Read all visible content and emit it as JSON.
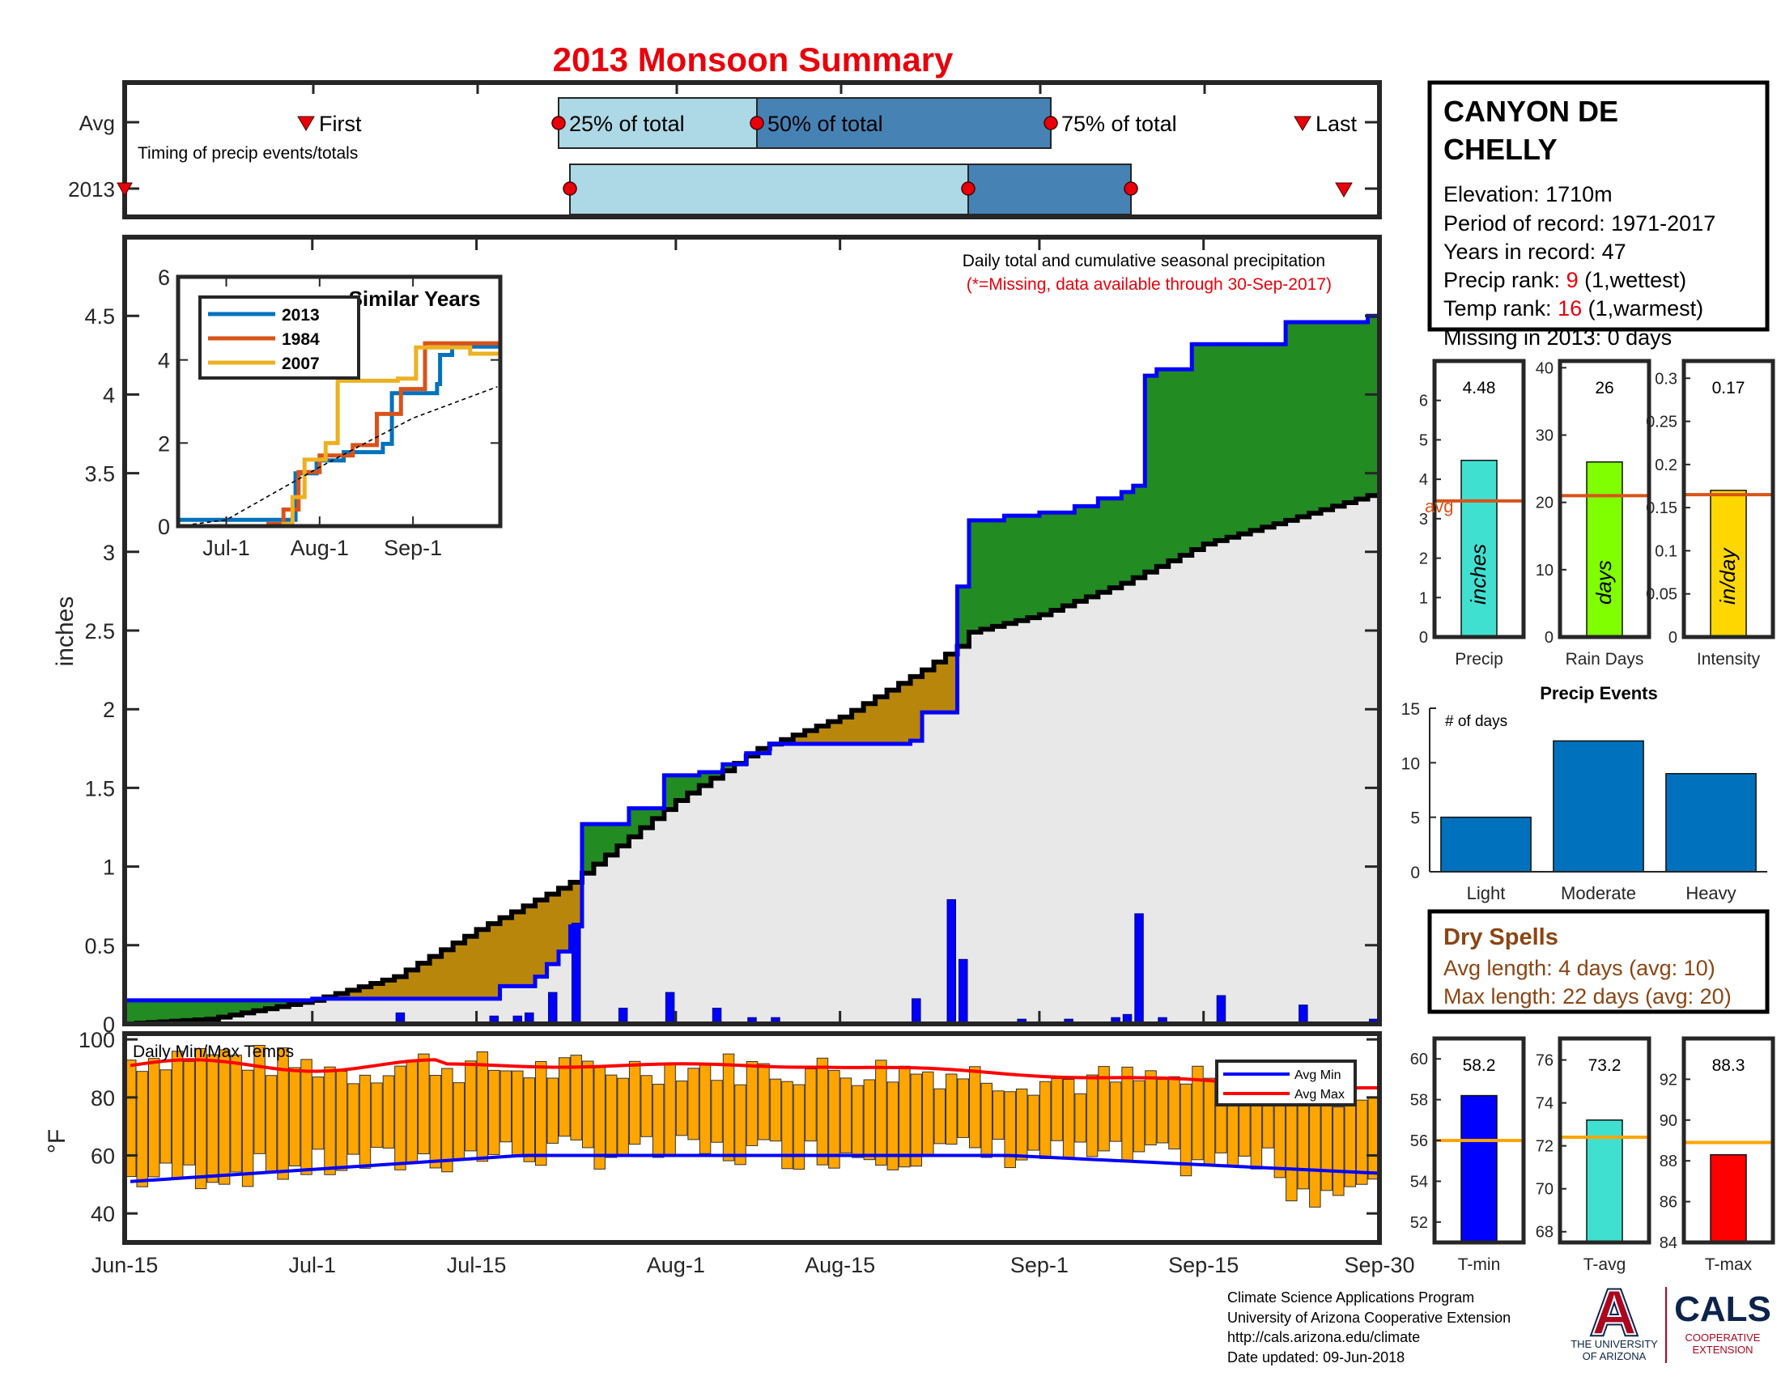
{
  "title": "2013 Monsoon Summary",
  "station": {
    "name_line1": "CANYON DE",
    "name_line2": "CHELLY",
    "elevation": "Elevation: 1710m",
    "period": "Period of record: 1971-2017",
    "years": "Years in record: 47",
    "precip_rank_label": "Precip rank: ",
    "precip_rank_value": "9",
    "precip_rank_note": " (1,wettest)",
    "temp_rank_label": "Temp rank: ",
    "temp_rank_value": "16",
    "temp_rank_note": " (1,warmest)",
    "missing": "Missing in 2013: 0 days"
  },
  "timing": {
    "row_labels": [
      "Avg",
      "2013"
    ],
    "note": "Timing of precip events/totals",
    "first_label": "First",
    "last_label": "Last",
    "avg_labels": [
      "25% of total",
      "50% of total",
      "75% of total"
    ],
    "colors": {
      "light": "#ADD8E6",
      "dark": "#4682B4",
      "marker": "#E8000B"
    }
  },
  "main_chart": {
    "ylabel": "inches",
    "note1": "Daily total and cumulative seasonal precipitation",
    "note2": "(*=Missing, data available through 30-Sep-2017)",
    "yticks": [
      "0",
      "0.5",
      "1",
      "1.5",
      "2",
      "2.5",
      "3",
      "3.5",
      "4",
      "4.5"
    ],
    "xticks": [
      "Jun-15",
      "Jul-1",
      "Jul-15",
      "Aug-1",
      "Aug-15",
      "Sep-1",
      "Sep-15",
      "Sep-30"
    ],
    "colors": {
      "above": "#228B22",
      "below": "#B8860B",
      "base": "#E8E8E8",
      "obs": "#0000FF",
      "avg": "#000000"
    }
  },
  "chart_data": [
    {
      "type": "line",
      "id": "cumulative-precip",
      "xlabel": "",
      "ylabel": "inches",
      "ylim": [
        0,
        5
      ],
      "date_range": [
        "2013-06-15",
        "2013-09-30"
      ],
      "series": [
        {
          "name": "",
          "role": "observed cumulative 2013",
          "points": [
            [
              "Jun-15",
              0.15
            ],
            [
              "Jun-24",
              0.15
            ],
            [
              "Jul-1",
              0.16
            ],
            [
              "Jul-17",
              0.24
            ],
            [
              "Jul-20",
              0.3
            ],
            [
              "Jul-21",
              0.38
            ],
            [
              "Jul-22",
              0.46
            ],
            [
              "Jul-23",
              0.62
            ],
            [
              "Jul-24",
              1.27
            ],
            [
              "Jul-28",
              1.37
            ],
            [
              "Jul-31",
              1.58
            ],
            [
              "Aug-3",
              1.6
            ],
            [
              "Aug-5",
              1.65
            ],
            [
              "Aug-7",
              1.72
            ],
            [
              "Aug-9",
              1.78
            ],
            [
              "Aug-17",
              1.78
            ],
            [
              "Aug-21",
              1.8
            ],
            [
              "Aug-22",
              1.98
            ],
            [
              "Aug-25",
              2.78
            ],
            [
              "Aug-26",
              3.2
            ],
            [
              "Aug-29",
              3.23
            ],
            [
              "Sep-1",
              3.25
            ],
            [
              "Sep-4",
              3.29
            ],
            [
              "Sep-6",
              3.34
            ],
            [
              "Sep-8",
              3.38
            ],
            [
              "Sep-9",
              3.42
            ],
            [
              "Sep-10",
              4.12
            ],
            [
              "Sep-11",
              4.16
            ],
            [
              "Sep-14",
              4.32
            ],
            [
              "Sep-22",
              4.46
            ],
            [
              "Sep-29",
              4.5
            ],
            [
              "Sep-30",
              4.5
            ]
          ]
        },
        {
          "name": "",
          "role": "average cumulative",
          "points": [
            [
              "Jun-15",
              0.0
            ],
            [
              "Jun-22",
              0.03
            ],
            [
              "Jul-1",
              0.15
            ],
            [
              "Jul-8",
              0.3
            ],
            [
              "Jul-15",
              0.6
            ],
            [
              "Jul-23",
              0.9
            ],
            [
              "Aug-1",
              1.42
            ],
            [
              "Aug-8",
              1.75
            ],
            [
              "Aug-15",
              1.95
            ],
            [
              "Aug-22",
              2.25
            ],
            [
              "Aug-25",
              2.4
            ],
            [
              "Aug-26",
              2.49
            ],
            [
              "Sep-1",
              2.6
            ],
            [
              "Sep-8",
              2.8
            ],
            [
              "Sep-15",
              3.05
            ],
            [
              "Sep-22",
              3.2
            ],
            [
              "Sep-30",
              3.38
            ]
          ]
        }
      ],
      "daily_bars": [
        [
          "Jul-8",
          0.07
        ],
        [
          "Jul-16",
          0.05
        ],
        [
          "Jul-18",
          0.05
        ],
        [
          "Jul-19",
          0.07
        ],
        [
          "Jul-21",
          0.2
        ],
        [
          "Jul-23",
          0.64
        ],
        [
          "Jul-27",
          0.1
        ],
        [
          "Jul-31",
          0.2
        ],
        [
          "Aug-4",
          0.1
        ],
        [
          "Aug-7",
          0.04
        ],
        [
          "Aug-9",
          0.04
        ],
        [
          "Aug-21",
          0.16
        ],
        [
          "Aug-24",
          0.79
        ],
        [
          "Aug-25",
          0.41
        ],
        [
          "Aug-30",
          0.03
        ],
        [
          "Sep-3",
          0.03
        ],
        [
          "Sep-7",
          0.04
        ],
        [
          "Sep-8",
          0.06
        ],
        [
          "Sep-9",
          0.7
        ],
        [
          "Sep-11",
          0.04
        ],
        [
          "Sep-16",
          0.18
        ],
        [
          "Sep-23",
          0.12
        ],
        [
          "Sep-29",
          0.03
        ]
      ]
    },
    {
      "type": "line",
      "id": "similar-years",
      "title": "Similar Years",
      "xticks": [
        "Jul-1",
        "Aug-1",
        "Sep-1"
      ],
      "ylim": [
        0,
        6
      ],
      "yticks": [
        "0",
        "2",
        "4",
        "6"
      ],
      "series": [
        {
          "name": "2013",
          "color": "#0072BD",
          "points": [
            [
              "Jun-15",
              0.15
            ],
            [
              "Jul-1",
              0.15
            ],
            [
              "Jul-24",
              1.27
            ],
            [
              "Jul-31",
              1.58
            ],
            [
              "Aug-9",
              1.78
            ],
            [
              "Aug-22",
              1.98
            ],
            [
              "Aug-25",
              3.2
            ],
            [
              "Sep-9",
              3.42
            ],
            [
              "Sep-10",
              4.12
            ],
            [
              "Sep-14",
              4.32
            ],
            [
              "Sep-30",
              4.5
            ]
          ]
        },
        {
          "name": "1984",
          "color": "#D95319",
          "points": [
            [
              "Jun-15",
              0.0
            ],
            [
              "Jul-15",
              0.05
            ],
            [
              "Jul-20",
              0.4
            ],
            [
              "Jul-25",
              1.3
            ],
            [
              "Aug-1",
              1.7
            ],
            [
              "Aug-12",
              1.95
            ],
            [
              "Aug-20",
              2.7
            ],
            [
              "Aug-28",
              3.3
            ],
            [
              "Sep-5",
              4.4
            ],
            [
              "Sep-30",
              4.5
            ]
          ]
        },
        {
          "name": "2007",
          "color": "#EDB120",
          "points": [
            [
              "Jun-15",
              0.0
            ],
            [
              "Jul-20",
              0.05
            ],
            [
              "Jul-23",
              0.7
            ],
            [
              "Jul-27",
              1.6
            ],
            [
              "Aug-3",
              2.0
            ],
            [
              "Aug-7",
              3.5
            ],
            [
              "Aug-27",
              3.55
            ],
            [
              "Sep-2",
              4.3
            ],
            [
              "Sep-20",
              4.15
            ],
            [
              "Sep-30",
              4.1
            ]
          ]
        },
        {
          "name": "",
          "role": "average",
          "color": "#000000",
          "points": [
            [
              "Jun-15",
              0.0
            ],
            [
              "Jul-1",
              0.15
            ],
            [
              "Aug-1",
              1.42
            ],
            [
              "Sep-1",
              2.6
            ],
            [
              "Sep-30",
              3.38
            ]
          ]
        }
      ]
    },
    {
      "type": "bar",
      "id": "temps",
      "label": "Daily Min/Max Temps",
      "ylabel": "°F",
      "ylim": [
        30,
        102
      ],
      "yticks": [
        "40",
        "60",
        "80",
        "100"
      ],
      "legend": [
        "Avg Min",
        "Avg Max"
      ],
      "legend_position": "top-right",
      "colors": {
        "bar": "#FFA500",
        "avgmin": "#0000FF",
        "avgmax": "#FF0000"
      }
    },
    {
      "type": "bar",
      "id": "precip-mini",
      "categories": [
        "Precip",
        "Rain Days",
        "Intensity"
      ],
      "values": [
        4.48,
        26,
        0.17
      ],
      "value_labels": [
        "4.48",
        "26",
        "0.17"
      ],
      "averages": [
        3.45,
        21,
        0.165
      ],
      "units": [
        "inches",
        "days",
        "in/day"
      ],
      "avg_label": "avg",
      "ylims": [
        [
          0,
          7
        ],
        [
          0,
          41
        ],
        [
          0,
          0.32
        ]
      ],
      "yticks": [
        [
          "0",
          "1",
          "2",
          "3",
          "4",
          "5",
          "6"
        ],
        [
          "0",
          "10",
          "20",
          "30",
          "40"
        ],
        [
          "0",
          "0.05",
          "0.1",
          "0.15",
          "0.2",
          "0.25",
          "0.3"
        ]
      ],
      "colors": [
        "#40E0D0",
        "#7FFF00",
        "#FFD700"
      ],
      "avg_color": "#D95319"
    },
    {
      "type": "bar",
      "id": "precip-events",
      "title": "Precip Events",
      "ylabel": "# of days",
      "categories": [
        "Light",
        "Moderate",
        "Heavy"
      ],
      "values": [
        5,
        12,
        9
      ],
      "ylim": [
        0,
        15
      ],
      "yticks": [
        "0",
        "5",
        "10",
        "15"
      ],
      "color": "#0072BD"
    },
    {
      "type": "bar",
      "id": "temp-mini",
      "categories": [
        "T-min",
        "T-avg",
        "T-max"
      ],
      "values": [
        58.2,
        73.2,
        88.3
      ],
      "value_labels": [
        "58.2",
        "73.2",
        "88.3"
      ],
      "averages": [
        56.0,
        72.4,
        88.9
      ],
      "ylims": [
        [
          51,
          61
        ],
        [
          67.5,
          77
        ],
        [
          84,
          94
        ]
      ],
      "yticks": [
        [
          "52",
          "54",
          "56",
          "58",
          "60"
        ],
        [
          "68",
          "70",
          "72",
          "74",
          "76"
        ],
        [
          "84",
          "86",
          "88",
          "90",
          "92"
        ]
      ],
      "colors": [
        "#0000FF",
        "#40E0D0",
        "#FF0000"
      ],
      "avg_color": "#FFA500"
    }
  ],
  "dry_spells": {
    "title": "Dry Spells",
    "avg": "Avg length: 4 days (avg: 10)",
    "max": "Max length: 22 days (avg: 20)",
    "color": "#8B4513"
  },
  "footer": {
    "line1": "Climate Science Applications Program",
    "line2": "University of Arizona Cooperative Extension",
    "line3": "http://cals.arizona.edu/climate",
    "line4": " Date updated: 09-Jun-2018"
  },
  "logo": {
    "ua_letter": "A",
    "ua_line1": "THE UNIVERSITY",
    "ua_line2": "OF ARIZONA",
    "cals": "CALS",
    "cals_line1": "COOPERATIVE",
    "cals_line2": "EXTENSION",
    "ua_red": "#AB0520",
    "ua_blue": "#0C234B"
  }
}
